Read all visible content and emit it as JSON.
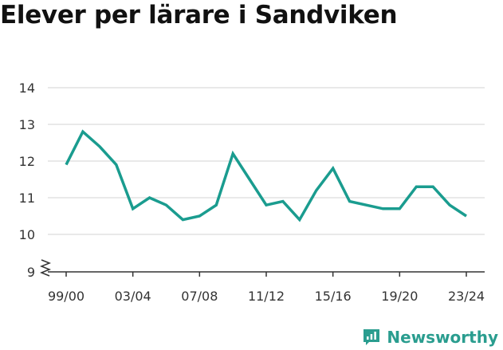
{
  "chart_data": {
    "type": "line",
    "title": "Elever per lärare i Sandviken",
    "xlabel": "",
    "ylabel": "",
    "ylim": [
      9,
      14
    ],
    "yticks": [
      9,
      10,
      11,
      12,
      13,
      14
    ],
    "y_axis_break": true,
    "grid": true,
    "legend": "none",
    "x_tick_labels": [
      "99/00",
      "03/04",
      "07/08",
      "11/12",
      "15/16",
      "19/20",
      "23/24"
    ],
    "categories": [
      "99/00",
      "00/01",
      "01/02",
      "02/03",
      "03/04",
      "04/05",
      "05/06",
      "06/07",
      "07/08",
      "08/09",
      "09/10",
      "10/11",
      "11/12",
      "12/13",
      "13/14",
      "14/15",
      "15/16",
      "16/17",
      "17/18",
      "18/19",
      "19/20",
      "20/21",
      "21/22",
      "22/23",
      "23/24"
    ],
    "series": [
      {
        "color": "#1a9c8f",
        "values": [
          11.9,
          12.8,
          12.4,
          11.9,
          10.7,
          11.0,
          10.8,
          10.4,
          10.5,
          10.8,
          12.2,
          11.5,
          10.8,
          10.9,
          10.4,
          11.2,
          11.8,
          10.9,
          10.8,
          10.7,
          10.7,
          11.3,
          11.3,
          10.8,
          10.5
        ]
      }
    ]
  },
  "brand": {
    "name": "Newsworthy",
    "color": "#2a9d8f",
    "icon": "newsworthy-logo-icon"
  }
}
